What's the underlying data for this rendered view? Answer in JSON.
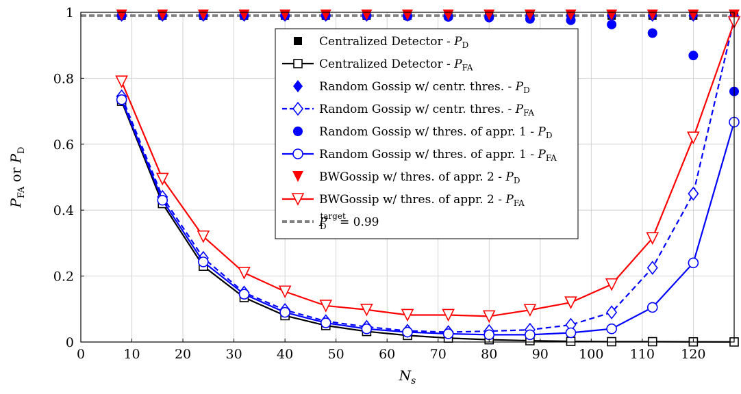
{
  "chart_data": {
    "type": "line",
    "xlabel": "N",
    "xlabel_sub": "s",
    "ylabel_parts": [
      "P",
      "FA",
      " or ",
      "P",
      "D"
    ],
    "xlim": [
      0,
      128
    ],
    "ylim": [
      0,
      1
    ],
    "xticks": [
      0,
      10,
      20,
      30,
      40,
      50,
      60,
      70,
      80,
      90,
      100,
      110,
      120
    ],
    "yticks": [
      0,
      0.2,
      0.4,
      0.6,
      0.8,
      1
    ],
    "ytick_labels": [
      "0",
      "0.2",
      "0.4",
      "0.6",
      "0.8",
      "1"
    ],
    "grid": true,
    "legend_position": "top-right",
    "x": [
      8,
      16,
      24,
      32,
      40,
      48,
      56,
      64,
      72,
      80,
      88,
      96,
      104,
      112,
      120,
      128
    ],
    "series": [
      {
        "legend_main": "Centralized Detector - ",
        "legend_sym": "P",
        "legend_sub": "D",
        "color": "#000000",
        "marker": "square",
        "filled": true,
        "line": "none",
        "values": [
          0.99,
          0.99,
          0.99,
          0.99,
          0.99,
          0.99,
          0.99,
          0.99,
          0.99,
          0.99,
          0.99,
          0.99,
          0.99,
          0.99,
          0.99,
          0.99
        ]
      },
      {
        "legend_main": "Centralized Detector - ",
        "legend_sym": "P",
        "legend_sub": "FA",
        "color": "#000000",
        "marker": "square",
        "filled": false,
        "line": "solid",
        "values": [
          0.73,
          0.42,
          0.23,
          0.135,
          0.08,
          0.05,
          0.032,
          0.02,
          0.012,
          0.007,
          0.004,
          0.002,
          0.001,
          0.001,
          0.0005,
          0.0002
        ]
      },
      {
        "legend_main": "Random Gossip w/ centr. thres. - ",
        "legend_sym": "P",
        "legend_sub": "D",
        "color": "#0000ff",
        "marker": "diamond",
        "filled": true,
        "line": "none",
        "values": [
          0.99,
          0.99,
          0.99,
          0.99,
          0.99,
          0.99,
          0.99,
          0.99,
          0.99,
          0.99,
          0.99,
          0.99,
          0.99,
          0.99,
          0.99,
          0.99
        ]
      },
      {
        "legend_main": "Random Gossip w/ centr. thres. - ",
        "legend_sym": "P",
        "legend_sub": "FA",
        "color": "#0000ff",
        "marker": "diamond",
        "filled": false,
        "line": "dashed",
        "values": [
          0.745,
          0.44,
          0.255,
          0.15,
          0.097,
          0.063,
          0.046,
          0.034,
          0.03,
          0.033,
          0.037,
          0.052,
          0.09,
          0.225,
          0.45,
          0.98
        ]
      },
      {
        "legend_main": "Random Gossip w/ thres. of appr. 1 - ",
        "legend_sym": "P",
        "legend_sub": "D",
        "color": "#0000ff",
        "marker": "circle",
        "filled": true,
        "line": "none",
        "values": [
          0.99,
          0.99,
          0.99,
          0.99,
          0.99,
          0.99,
          0.99,
          0.988,
          0.986,
          0.984,
          0.98,
          0.976,
          0.963,
          0.937,
          0.869,
          0.76
        ]
      },
      {
        "legend_main": "Random Gossip w/ thres. of appr. 1 - ",
        "legend_sym": "P",
        "legend_sub": "FA",
        "color": "#0000ff",
        "marker": "circle",
        "filled": false,
        "line": "solid",
        "values": [
          0.735,
          0.43,
          0.243,
          0.145,
          0.09,
          0.058,
          0.04,
          0.03,
          0.025,
          0.022,
          0.022,
          0.028,
          0.04,
          0.105,
          0.24,
          0.667
        ]
      },
      {
        "legend_main": "BWGossip w/ thres. of appr. 2 - ",
        "legend_sym": "P",
        "legend_sub": "D",
        "color": "#ff0000",
        "marker": "triangle-down",
        "filled": true,
        "line": "none",
        "values": [
          0.992,
          0.992,
          0.992,
          0.992,
          0.992,
          0.992,
          0.992,
          0.992,
          0.992,
          0.992,
          0.992,
          0.992,
          0.992,
          0.992,
          0.992,
          0.992
        ]
      },
      {
        "legend_main": "BWGossip w/ thres. of appr. 2 - ",
        "legend_sym": "P",
        "legend_sub": "FA",
        "color": "#ff0000",
        "marker": "triangle-down",
        "filled": false,
        "line": "solid",
        "values": [
          0.79,
          0.495,
          0.32,
          0.21,
          0.153,
          0.11,
          0.098,
          0.082,
          0.082,
          0.078,
          0.097,
          0.12,
          0.175,
          0.315,
          0.62,
          0.97
        ]
      }
    ],
    "reference_line": {
      "legend_sym": "P",
      "legend_sub": "D",
      "legend_sup": "target",
      "legend_eq": " = 0.99",
      "value": 0.99,
      "color": "#808080",
      "line": "dashed"
    }
  }
}
